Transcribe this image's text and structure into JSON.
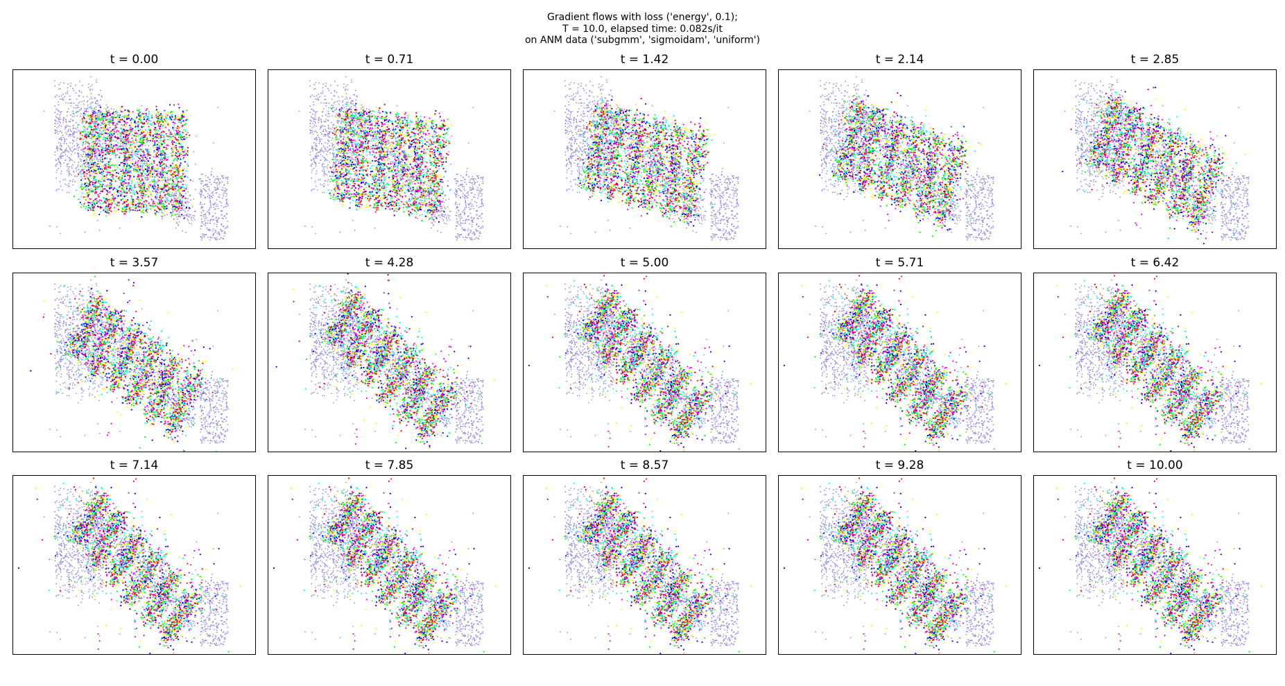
{
  "figure": {
    "suptitle_lines": [
      "Gradient flows with loss ('energy', 0.1);",
      "T = 10.0, elapsed time: 0.082s/it",
      "on ANM data ('subgmm', 'sigmoidam', 'uniform')"
    ]
  },
  "chart_data": {
    "type": "scatter",
    "grid": false,
    "axes_ticks_visible": false,
    "layout": {
      "rows": 3,
      "cols": 5
    },
    "source_color": "#8c8ce6",
    "flow_colormap": [
      "#ff0000",
      "#ffff00",
      "#00ff00",
      "#00ffff",
      "#0000ff",
      "#ff00ff"
    ],
    "source_distribution": {
      "description_hidden": true,
      "x_range": [
        -3.5,
        3.5
      ],
      "y_range": [
        -2.8,
        2.8
      ]
    },
    "target_grid": {
      "rows": 6,
      "cols": 6
    },
    "panels": [
      {
        "title": "t = 0.00",
        "t": 0.0
      },
      {
        "title": "t = 0.71",
        "t": 0.71
      },
      {
        "title": "t = 1.42",
        "t": 1.42
      },
      {
        "title": "t = 2.14",
        "t": 2.14
      },
      {
        "title": "t = 2.85",
        "t": 2.85
      },
      {
        "title": "t = 3.57",
        "t": 3.57
      },
      {
        "title": "t = 4.28",
        "t": 4.28
      },
      {
        "title": "t = 5.00",
        "t": 5.0
      },
      {
        "title": "t = 5.71",
        "t": 5.71
      },
      {
        "title": "t = 6.42",
        "t": 6.42
      },
      {
        "title": "t = 7.14",
        "t": 7.14
      },
      {
        "title": "t = 7.85",
        "t": 7.85
      },
      {
        "title": "t = 8.57",
        "t": 8.57
      },
      {
        "title": "t = 9.28",
        "t": 9.28
      },
      {
        "title": "t = 10.00",
        "t": 10.0
      }
    ]
  }
}
